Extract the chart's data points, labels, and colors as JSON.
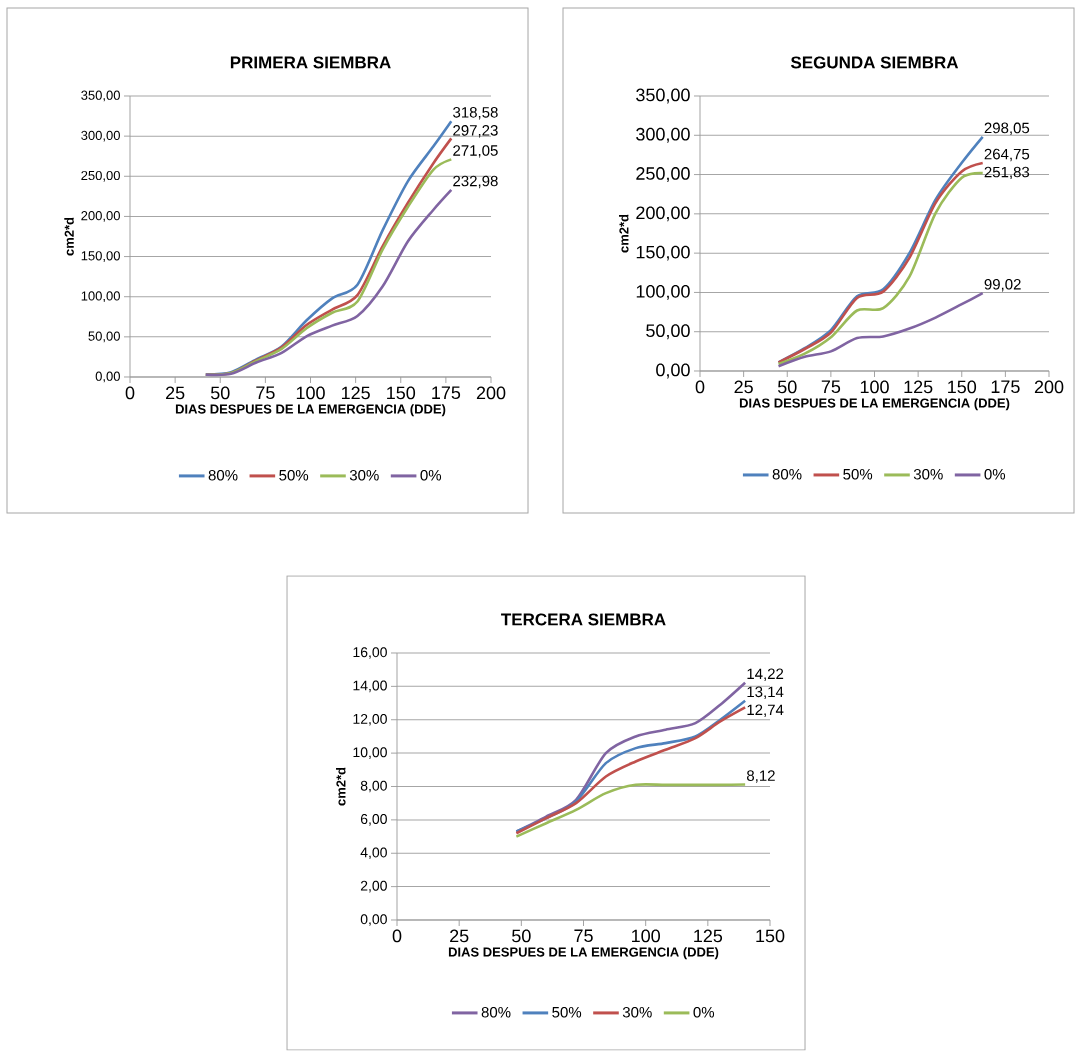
{
  "chart_data": [
    {
      "type": "line",
      "title": "PRIMERA SIEMBRA",
      "xlabel": "DIAS DESPUES DE LA EMERGENCIA (DDE)",
      "ylabel": "cm2*d",
      "x": [
        42,
        56,
        70,
        84,
        98,
        112,
        126,
        140,
        154,
        168,
        178
      ],
      "series": [
        {
          "name": "80%",
          "color": "#4f81bd",
          "values": [
            3,
            6,
            22,
            38,
            71,
            98,
            115,
            183,
            244,
            287,
            318.58
          ],
          "value_labels": [
            null,
            null,
            null,
            null,
            null,
            null,
            null,
            null,
            null,
            null,
            "318,58"
          ]
        },
        {
          "name": "50%",
          "color": "#c0504d",
          "values": [
            3,
            5,
            21,
            37,
            65,
            84,
            102,
            163,
            217,
            266,
            297.23
          ],
          "value_labels": [
            null,
            null,
            null,
            null,
            null,
            null,
            null,
            null,
            null,
            null,
            "297,23"
          ]
        },
        {
          "name": "30%",
          "color": "#9bbb59",
          "values": [
            3,
            5,
            20,
            35,
            61,
            80,
            94,
            159,
            212,
            258,
            271.05
          ],
          "value_labels": [
            null,
            null,
            null,
            null,
            null,
            null,
            null,
            null,
            null,
            null,
            "271,05"
          ]
        },
        {
          "name": "0%",
          "color": "#8064a2",
          "values": [
            3,
            4,
            18,
            30,
            51,
            64,
            76,
            113,
            169,
            208,
            232.98
          ],
          "value_labels": [
            null,
            null,
            null,
            null,
            null,
            null,
            null,
            null,
            null,
            null,
            "232,98"
          ]
        }
      ],
      "xlim": [
        0,
        200
      ],
      "xticks": [
        0,
        25,
        50,
        75,
        100,
        125,
        150,
        175,
        200
      ],
      "ylim": [
        0,
        350
      ],
      "yticks": [
        {
          "value": 0,
          "label": "0,00"
        },
        {
          "value": 50,
          "label": "50,00"
        },
        {
          "value": 100,
          "label": "100,00"
        },
        {
          "value": 150,
          "label": "150,00"
        },
        {
          "value": 200,
          "label": "200,00"
        },
        {
          "value": 250,
          "label": "250,00"
        },
        {
          "value": 300,
          "label": "300,00"
        },
        {
          "value": 350,
          "label": "350,00"
        }
      ],
      "grid": "y",
      "legend": "bottom"
    },
    {
      "type": "line",
      "title": "SEGUNDA SIEMBRA",
      "xlabel": "DIAS DESPUES DE LA EMERGENCIA (DDE)",
      "ylabel": "cm2*d",
      "x": [
        45,
        60,
        75,
        90,
        105,
        120,
        135,
        150,
        162
      ],
      "series": [
        {
          "name": "80%",
          "color": "#4f81bd",
          "values": [
            11,
            29,
            52,
            95,
            104,
            150,
            218,
            265,
            298.05
          ],
          "value_labels": [
            null,
            null,
            null,
            null,
            null,
            null,
            null,
            null,
            "298,05"
          ]
        },
        {
          "name": "50%",
          "color": "#c0504d",
          "values": [
            11,
            28,
            49,
            93,
            101,
            144,
            214,
            254,
            264.75
          ],
          "value_labels": [
            null,
            null,
            null,
            null,
            null,
            null,
            null,
            null,
            "264,75"
          ]
        },
        {
          "name": "30%",
          "color": "#9bbb59",
          "values": [
            9,
            22,
            43,
            77,
            80,
            120,
            201,
            246,
            251.83
          ],
          "value_labels": [
            null,
            null,
            null,
            null,
            null,
            null,
            null,
            null,
            "251,83"
          ]
        },
        {
          "name": "0%",
          "color": "#8064a2",
          "values": [
            6,
            18,
            25,
            42,
            44,
            54,
            68,
            85,
            99.02
          ],
          "value_labels": [
            null,
            null,
            null,
            null,
            null,
            null,
            null,
            null,
            "99,02"
          ]
        }
      ],
      "xlim": [
        0,
        200
      ],
      "xticks": [
        0,
        25,
        50,
        75,
        100,
        125,
        150,
        175,
        200
      ],
      "ylim": [
        0,
        350
      ],
      "yticks": [
        {
          "value": 0,
          "label": "0,00"
        },
        {
          "value": 50,
          "label": "50,00"
        },
        {
          "value": 100,
          "label": "100,00"
        },
        {
          "value": 150,
          "label": "150,00"
        },
        {
          "value": 200,
          "label": "200,00"
        },
        {
          "value": 250,
          "label": "250,00"
        },
        {
          "value": 300,
          "label": "300,00"
        },
        {
          "value": 350,
          "label": "350,00"
        }
      ],
      "grid": "y",
      "legend": "bottom"
    },
    {
      "type": "line",
      "title": "TERCERA SIEMBRA",
      "xlabel": "DIAS DESPUES DE LA EMERGENCIA (DDE)",
      "ylabel": "cm2*d",
      "x": [
        48,
        60,
        72,
        84,
        96,
        108,
        120,
        130,
        140
      ],
      "series": [
        {
          "name": "80%",
          "color": "#8064a2",
          "values": [
            5.3,
            6.2,
            7.2,
            10,
            11,
            11.4,
            11.8,
            12.9,
            14.22
          ],
          "value_labels": [
            null,
            null,
            null,
            null,
            null,
            null,
            null,
            null,
            "14,22"
          ]
        },
        {
          "name": "50%",
          "color": "#4f81bd",
          "values": [
            5.3,
            6.1,
            7.1,
            9.4,
            10.3,
            10.6,
            11,
            12,
            13.14
          ],
          "value_labels": [
            null,
            null,
            null,
            null,
            null,
            null,
            null,
            null,
            "13,14"
          ]
        },
        {
          "name": "30%",
          "color": "#c0504d",
          "values": [
            5.2,
            6.1,
            7,
            8.6,
            9.5,
            10.2,
            10.9,
            11.9,
            12.74
          ],
          "value_labels": [
            null,
            null,
            null,
            null,
            null,
            null,
            null,
            null,
            "12,74"
          ]
        },
        {
          "name": "0%",
          "color": "#9bbb59",
          "values": [
            5,
            5.8,
            6.6,
            7.6,
            8.1,
            8.1,
            8.1,
            8.1,
            8.12
          ],
          "value_labels": [
            null,
            null,
            null,
            null,
            null,
            null,
            null,
            null,
            "8,12"
          ]
        }
      ],
      "xlim": [
        0,
        150
      ],
      "xticks": [
        0,
        25,
        50,
        75,
        100,
        125,
        150
      ],
      "ylim": [
        0,
        16
      ],
      "yticks": [
        {
          "value": 0,
          "label": "0,00"
        },
        {
          "value": 2,
          "label": "2,00"
        },
        {
          "value": 4,
          "label": "4,00"
        },
        {
          "value": 6,
          "label": "6,00"
        },
        {
          "value": 8,
          "label": "8,00"
        },
        {
          "value": 10,
          "label": "10,00"
        },
        {
          "value": 12,
          "label": "12,00"
        },
        {
          "value": 14,
          "label": "14,00"
        },
        {
          "value": 16,
          "label": "16,00"
        }
      ],
      "grid": "y",
      "legend": "bottom"
    }
  ]
}
